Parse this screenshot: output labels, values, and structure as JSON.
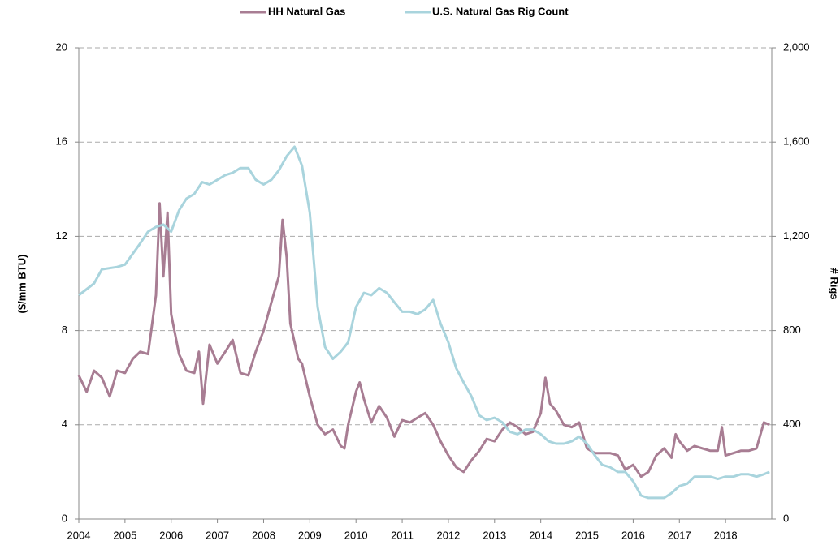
{
  "chart_data": {
    "type": "line",
    "legend_position": "top",
    "y_label": "($/mm BTU)",
    "y2_label": "# Rigs",
    "xlim": [
      2004,
      2019
    ],
    "xticks": [
      2004,
      2005,
      2006,
      2007,
      2008,
      2009,
      2010,
      2011,
      2012,
      2013,
      2014,
      2015,
      2016,
      2017,
      2018
    ],
    "ylim": [
      0,
      20
    ],
    "yticks": [
      0,
      4,
      8,
      12,
      16,
      20
    ],
    "y2lim": [
      0,
      2000
    ],
    "y2ticks": [
      0,
      400,
      800,
      {
        "value": 1200,
        "label": "1,200"
      },
      {
        "value": 1600,
        "label": "1,600"
      },
      {
        "value": 2000,
        "label": "2,000"
      }
    ],
    "grid": true,
    "series": [
      {
        "name": "HH Natural Gas",
        "color": "#a87d93",
        "axis": "y",
        "x": [
          2004.0,
          2004.17,
          2004.33,
          2004.5,
          2004.67,
          2004.83,
          2005.0,
          2005.17,
          2005.33,
          2005.5,
          2005.67,
          2005.75,
          2005.83,
          2005.92,
          2006.0,
          2006.17,
          2006.33,
          2006.5,
          2006.6,
          2006.69,
          2006.83,
          2007.0,
          2007.17,
          2007.33,
          2007.5,
          2007.67,
          2007.83,
          2008.0,
          2008.17,
          2008.33,
          2008.41,
          2008.5,
          2008.58,
          2008.75,
          2008.83,
          2009.0,
          2009.17,
          2009.33,
          2009.5,
          2009.67,
          2009.75,
          2009.83,
          2010.0,
          2010.08,
          2010.17,
          2010.33,
          2010.5,
          2010.67,
          2010.83,
          2011.0,
          2011.17,
          2011.33,
          2011.5,
          2011.67,
          2011.83,
          2012.0,
          2012.17,
          2012.33,
          2012.5,
          2012.67,
          2012.83,
          2013.0,
          2013.17,
          2013.33,
          2013.5,
          2013.67,
          2013.83,
          2014.0,
          2014.1,
          2014.2,
          2014.33,
          2014.5,
          2014.67,
          2014.83,
          2015.0,
          2015.17,
          2015.33,
          2015.5,
          2015.67,
          2015.83,
          2016.0,
          2016.17,
          2016.33,
          2016.5,
          2016.67,
          2016.83,
          2016.92,
          2017.0,
          2017.17,
          2017.33,
          2017.5,
          2017.67,
          2017.83,
          2017.92,
          2018.0,
          2018.17,
          2018.33,
          2018.5,
          2018.67,
          2018.83,
          2018.95
        ],
        "values": [
          6.1,
          5.4,
          6.3,
          6.0,
          5.2,
          6.3,
          6.2,
          6.8,
          7.1,
          7.0,
          9.5,
          13.4,
          10.3,
          13.0,
          8.7,
          7.0,
          6.3,
          6.2,
          7.1,
          4.9,
          7.4,
          6.6,
          7.1,
          7.6,
          6.2,
          6.1,
          7.1,
          8.0,
          9.2,
          10.3,
          12.7,
          11.1,
          8.3,
          6.8,
          6.6,
          5.2,
          4.0,
          3.6,
          3.8,
          3.1,
          3.0,
          4.0,
          5.4,
          5.8,
          5.1,
          4.1,
          4.8,
          4.3,
          3.5,
          4.2,
          4.1,
          4.3,
          4.5,
          4.0,
          3.3,
          2.7,
          2.2,
          2.0,
          2.5,
          2.9,
          3.4,
          3.3,
          3.8,
          4.1,
          3.9,
          3.6,
          3.7,
          4.5,
          6.0,
          4.9,
          4.6,
          4.0,
          3.9,
          4.1,
          3.0,
          2.8,
          2.8,
          2.8,
          2.7,
          2.1,
          2.3,
          1.8,
          2.0,
          2.7,
          3.0,
          2.6,
          3.6,
          3.3,
          2.9,
          3.1,
          3.0,
          2.9,
          2.9,
          3.9,
          2.7,
          2.8,
          2.9,
          2.9,
          3.0,
          4.1,
          4.0
        ]
      },
      {
        "name": "U.S. Natural Gas Rig Count",
        "color": "#a9d4dd",
        "axis": "y2",
        "x": [
          2004.0,
          2004.33,
          2004.5,
          2004.83,
          2005.0,
          2005.33,
          2005.5,
          2005.67,
          2005.83,
          2006.0,
          2006.17,
          2006.33,
          2006.5,
          2006.67,
          2006.83,
          2007.0,
          2007.17,
          2007.33,
          2007.5,
          2007.67,
          2007.83,
          2008.0,
          2008.17,
          2008.33,
          2008.5,
          2008.67,
          2008.83,
          2009.0,
          2009.17,
          2009.33,
          2009.5,
          2009.67,
          2009.83,
          2010.0,
          2010.17,
          2010.33,
          2010.5,
          2010.67,
          2010.83,
          2011.0,
          2011.17,
          2011.33,
          2011.5,
          2011.67,
          2011.83,
          2012.0,
          2012.17,
          2012.33,
          2012.5,
          2012.67,
          2012.83,
          2013.0,
          2013.17,
          2013.33,
          2013.5,
          2013.67,
          2013.83,
          2014.0,
          2014.17,
          2014.33,
          2014.5,
          2014.67,
          2014.83,
          2015.0,
          2015.17,
          2015.33,
          2015.5,
          2015.67,
          2015.83,
          2016.0,
          2016.17,
          2016.33,
          2016.5,
          2016.67,
          2016.83,
          2017.0,
          2017.17,
          2017.33,
          2017.5,
          2017.67,
          2017.83,
          2018.0,
          2018.17,
          2018.33,
          2018.5,
          2018.67,
          2018.83,
          2018.95
        ],
        "values": [
          950,
          1000,
          1060,
          1070,
          1080,
          1170,
          1220,
          1240,
          1250,
          1220,
          1310,
          1360,
          1380,
          1430,
          1420,
          1440,
          1460,
          1470,
          1490,
          1490,
          1440,
          1420,
          1440,
          1480,
          1540,
          1580,
          1500,
          1300,
          900,
          730,
          680,
          710,
          750,
          900,
          960,
          950,
          980,
          960,
          920,
          880,
          880,
          870,
          890,
          930,
          830,
          750,
          640,
          580,
          520,
          440,
          420,
          430,
          410,
          370,
          360,
          380,
          380,
          360,
          330,
          320,
          320,
          330,
          350,
          320,
          270,
          230,
          220,
          200,
          200,
          160,
          100,
          90,
          90,
          90,
          110,
          140,
          150,
          180,
          180,
          180,
          170,
          180,
          180,
          190,
          190,
          180,
          190,
          200
        ]
      }
    ]
  }
}
